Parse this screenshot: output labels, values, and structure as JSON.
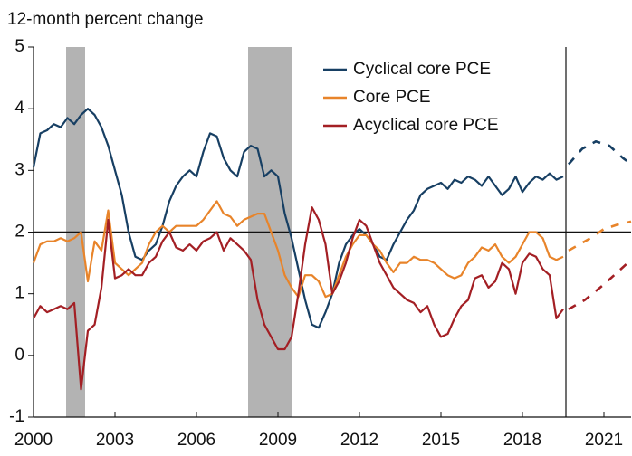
{
  "chart_data": {
    "type": "line",
    "y_axis_label": "12-month percent change",
    "xlim": [
      2000,
      2022
    ],
    "ylim": [
      -1,
      5
    ],
    "xticks": [
      2000,
      2003,
      2006,
      2009,
      2012,
      2015,
      2018,
      2021
    ],
    "yticks": [
      -1,
      0,
      1,
      2,
      3,
      4,
      5
    ],
    "shaded_periods": [
      [
        2001.2,
        2001.9
      ],
      [
        2007.9,
        2009.5
      ]
    ],
    "hline": 2,
    "vline": 2019.6,
    "legend": "top",
    "x": [
      2000,
      2000.25,
      2000.5,
      2000.75,
      2001,
      2001.25,
      2001.5,
      2001.75,
      2002,
      2002.25,
      2002.5,
      2002.75,
      2003,
      2003.25,
      2003.5,
      2003.75,
      2004,
      2004.25,
      2004.5,
      2004.75,
      2005,
      2005.25,
      2005.5,
      2005.75,
      2006,
      2006.25,
      2006.5,
      2006.75,
      2007,
      2007.25,
      2007.5,
      2007.75,
      2008,
      2008.25,
      2008.5,
      2008.75,
      2009,
      2009.25,
      2009.5,
      2009.75,
      2010,
      2010.25,
      2010.5,
      2010.75,
      2011,
      2011.25,
      2011.5,
      2011.75,
      2012,
      2012.25,
      2012.5,
      2012.75,
      2013,
      2013.25,
      2013.5,
      2013.75,
      2014,
      2014.25,
      2014.5,
      2014.75,
      2015,
      2015.25,
      2015.5,
      2015.75,
      2016,
      2016.25,
      2016.5,
      2016.75,
      2017,
      2017.25,
      2017.5,
      2017.75,
      2018,
      2018.25,
      2018.5,
      2018.75,
      2019,
      2019.25,
      2019.5
    ],
    "series": [
      {
        "name": "Cyclical core PCE",
        "color": "#173f63",
        "values": [
          3.05,
          3.6,
          3.65,
          3.75,
          3.7,
          3.85,
          3.75,
          3.9,
          4.0,
          3.9,
          3.7,
          3.4,
          3.0,
          2.6,
          2.0,
          1.6,
          1.55,
          1.7,
          1.8,
          2.1,
          2.5,
          2.75,
          2.9,
          3.0,
          2.9,
          3.3,
          3.6,
          3.55,
          3.2,
          3.0,
          2.9,
          3.3,
          3.4,
          3.35,
          2.9,
          3.0,
          2.9,
          2.3,
          1.9,
          1.4,
          0.9,
          0.5,
          0.45,
          0.7,
          1.0,
          1.5,
          1.8,
          1.95,
          2.05,
          1.95,
          1.8,
          1.6,
          1.55,
          1.8,
          2.0,
          2.2,
          2.35,
          2.6,
          2.7,
          2.75,
          2.8,
          2.7,
          2.85,
          2.8,
          2.9,
          2.85,
          2.75,
          2.9,
          2.75,
          2.6,
          2.7,
          2.9,
          2.65,
          2.8,
          2.9,
          2.85,
          2.95,
          2.85,
          2.9
        ],
        "forecast_x": [
          2019.7,
          2020.2,
          2020.7,
          2021.2,
          2021.7,
          2022
        ],
        "forecast_values": [
          3.1,
          3.35,
          3.47,
          3.4,
          3.2,
          3.1
        ]
      },
      {
        "name": "Core PCE",
        "color": "#e8842a",
        "values": [
          1.5,
          1.8,
          1.85,
          1.85,
          1.9,
          1.85,
          1.9,
          2.0,
          1.2,
          1.85,
          1.7,
          2.35,
          1.5,
          1.4,
          1.3,
          1.4,
          1.5,
          1.8,
          2.0,
          2.1,
          2.0,
          2.1,
          2.1,
          2.1,
          2.1,
          2.2,
          2.35,
          2.5,
          2.3,
          2.25,
          2.1,
          2.2,
          2.25,
          2.3,
          2.3,
          2.0,
          1.7,
          1.3,
          1.1,
          0.95,
          1.3,
          1.3,
          1.2,
          0.95,
          1.0,
          1.3,
          1.6,
          1.8,
          1.95,
          1.95,
          1.8,
          1.7,
          1.5,
          1.35,
          1.5,
          1.5,
          1.6,
          1.55,
          1.55,
          1.5,
          1.4,
          1.3,
          1.25,
          1.3,
          1.5,
          1.6,
          1.75,
          1.7,
          1.8,
          1.6,
          1.5,
          1.6,
          1.8,
          2.0,
          2.0,
          1.9,
          1.6,
          1.55,
          1.6
        ],
        "forecast_x": [
          2019.7,
          2020.5,
          2021,
          2021.5,
          2022
        ],
        "forecast_values": [
          1.7,
          1.9,
          2.05,
          2.12,
          2.17
        ]
      },
      {
        "name": "Acyclical core PCE",
        "color": "#a31f24",
        "values": [
          0.6,
          0.8,
          0.7,
          0.75,
          0.8,
          0.75,
          0.85,
          -0.55,
          0.4,
          0.5,
          1.1,
          2.2,
          1.25,
          1.3,
          1.4,
          1.3,
          1.3,
          1.5,
          1.6,
          1.85,
          2.0,
          1.75,
          1.7,
          1.8,
          1.7,
          1.85,
          1.9,
          2.0,
          1.7,
          1.9,
          1.8,
          1.7,
          1.55,
          0.9,
          0.5,
          0.3,
          0.1,
          0.1,
          0.3,
          1.0,
          1.8,
          2.4,
          2.2,
          1.8,
          1.0,
          1.2,
          1.5,
          1.9,
          2.2,
          2.1,
          1.8,
          1.5,
          1.3,
          1.1,
          1.0,
          0.9,
          0.85,
          0.7,
          0.8,
          0.5,
          0.3,
          0.35,
          0.6,
          0.8,
          0.9,
          1.25,
          1.3,
          1.1,
          1.2,
          1.5,
          1.4,
          1.0,
          1.5,
          1.65,
          1.6,
          1.4,
          1.3,
          0.6,
          0.75
        ],
        "forecast_x": [
          2019.7,
          2020.3,
          2021,
          2021.5,
          2022
        ],
        "forecast_values": [
          0.75,
          0.9,
          1.15,
          1.35,
          1.55
        ]
      }
    ]
  }
}
